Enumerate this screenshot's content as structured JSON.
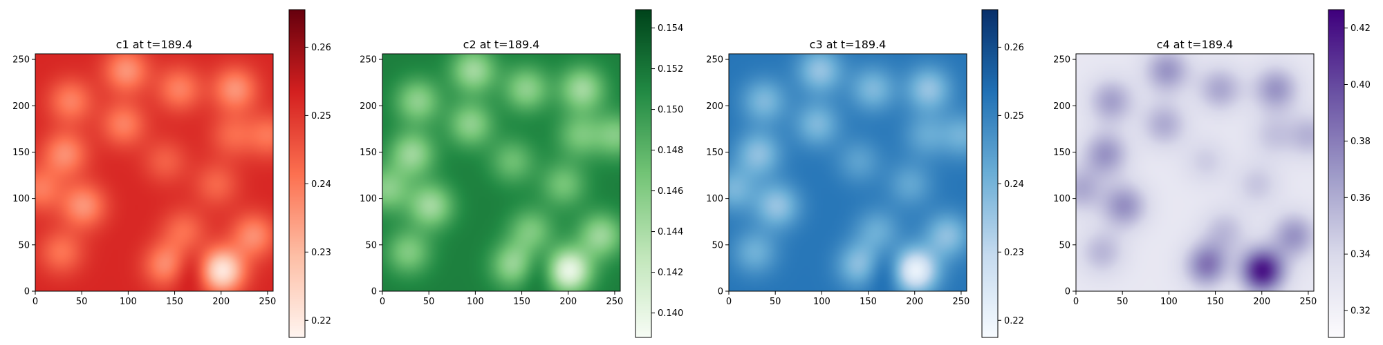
{
  "chart_data": [
    {
      "type": "heatmap",
      "title": "c1 at t=189.4",
      "xlim": [
        0,
        256
      ],
      "ylim": [
        0,
        256
      ],
      "xticks": [
        0,
        50,
        100,
        150,
        200,
        250
      ],
      "yticks": [
        0,
        50,
        100,
        150,
        200,
        250
      ],
      "colormap": "Reds",
      "colors": [
        "#fff5f0",
        "#fdbea5",
        "#fc7050",
        "#d42020",
        "#67000d"
      ],
      "clim": [
        0.2175,
        0.2655
      ],
      "colorbar_ticks": [
        0.22,
        0.23,
        0.24,
        0.25,
        0.26
      ],
      "colorbar_labels": [
        "0.22",
        "0.23",
        "0.24",
        "0.25",
        "0.26"
      ],
      "base_value": 0.2525,
      "blobs": [
        {
          "x": 200,
          "y": 22,
          "value": 0.2195
        },
        {
          "x": 142,
          "y": 28,
          "value": 0.2355
        },
        {
          "x": 168,
          "y": 22,
          "value": 0.262
        },
        {
          "x": 98,
          "y": 238,
          "value": 0.236
        },
        {
          "x": 215,
          "y": 218,
          "value": 0.236
        },
        {
          "x": 38,
          "y": 205,
          "value": 0.239
        },
        {
          "x": 155,
          "y": 218,
          "value": 0.239
        },
        {
          "x": 95,
          "y": 180,
          "value": 0.239
        },
        {
          "x": 32,
          "y": 148,
          "value": 0.237
        },
        {
          "x": 52,
          "y": 92,
          "value": 0.236
        },
        {
          "x": 235,
          "y": 60,
          "value": 0.237
        },
        {
          "x": 28,
          "y": 42,
          "value": 0.241
        },
        {
          "x": 195,
          "y": 115,
          "value": 0.243
        },
        {
          "x": 140,
          "y": 140,
          "value": 0.244
        },
        {
          "x": 5,
          "y": 110,
          "value": 0.24
        },
        {
          "x": 252,
          "y": 168,
          "value": 0.241
        },
        {
          "x": 212,
          "y": 168,
          "value": 0.243
        },
        {
          "x": 160,
          "y": 65,
          "value": 0.242
        }
      ]
    },
    {
      "type": "heatmap",
      "title": "c2 at t=189.4",
      "xlim": [
        0,
        256
      ],
      "ylim": [
        0,
        256
      ],
      "xticks": [
        0,
        50,
        100,
        150,
        200,
        250
      ],
      "yticks": [
        0,
        50,
        100,
        150,
        200,
        250
      ],
      "colormap": "Greens",
      "colors": [
        "#f7fcf5",
        "#c1e6ba",
        "#73c476",
        "#228a44",
        "#00441b"
      ],
      "clim": [
        0.1388,
        0.1549
      ],
      "colorbar_ticks": [
        0.14,
        0.142,
        0.144,
        0.146,
        0.148,
        0.15,
        0.152,
        0.154
      ],
      "colorbar_labels": [
        "0.140",
        "0.142",
        "0.144",
        "0.146",
        "0.148",
        "0.150",
        "0.152",
        "0.154"
      ],
      "base_value": 0.1515,
      "blobs": [
        {
          "x": 200,
          "y": 22,
          "value": 0.1395
        },
        {
          "x": 142,
          "y": 28,
          "value": 0.1445
        },
        {
          "x": 168,
          "y": 22,
          "value": 0.1545
        },
        {
          "x": 98,
          "y": 238,
          "value": 0.1445
        },
        {
          "x": 215,
          "y": 218,
          "value": 0.1445
        },
        {
          "x": 38,
          "y": 205,
          "value": 0.1455
        },
        {
          "x": 155,
          "y": 218,
          "value": 0.1455
        },
        {
          "x": 95,
          "y": 180,
          "value": 0.1455
        },
        {
          "x": 32,
          "y": 148,
          "value": 0.1448
        },
        {
          "x": 52,
          "y": 92,
          "value": 0.1445
        },
        {
          "x": 235,
          "y": 60,
          "value": 0.1448
        },
        {
          "x": 28,
          "y": 42,
          "value": 0.1462
        },
        {
          "x": 195,
          "y": 115,
          "value": 0.1468
        },
        {
          "x": 140,
          "y": 140,
          "value": 0.1472
        },
        {
          "x": 5,
          "y": 110,
          "value": 0.1458
        },
        {
          "x": 252,
          "y": 168,
          "value": 0.1462
        },
        {
          "x": 212,
          "y": 168,
          "value": 0.1468
        },
        {
          "x": 160,
          "y": 65,
          "value": 0.1465
        }
      ]
    },
    {
      "type": "heatmap",
      "title": "c3 at t=189.4",
      "xlim": [
        0,
        256
      ],
      "ylim": [
        0,
        256
      ],
      "xticks": [
        0,
        50,
        100,
        150,
        200,
        250
      ],
      "yticks": [
        0,
        50,
        100,
        150,
        200,
        250
      ],
      "colormap": "Blues",
      "colors": [
        "#f7fbff",
        "#c6dbef",
        "#6baed6",
        "#2171b5",
        "#08306b"
      ],
      "clim": [
        0.2175,
        0.2655
      ],
      "colorbar_ticks": [
        0.22,
        0.23,
        0.24,
        0.25,
        0.26
      ],
      "colorbar_labels": [
        "0.22",
        "0.23",
        "0.24",
        "0.25",
        "0.26"
      ],
      "base_value": 0.2525,
      "blobs": [
        {
          "x": 200,
          "y": 22,
          "value": 0.2195
        },
        {
          "x": 142,
          "y": 28,
          "value": 0.2355
        },
        {
          "x": 168,
          "y": 22,
          "value": 0.262
        },
        {
          "x": 98,
          "y": 238,
          "value": 0.236
        },
        {
          "x": 215,
          "y": 218,
          "value": 0.236
        },
        {
          "x": 38,
          "y": 205,
          "value": 0.239
        },
        {
          "x": 155,
          "y": 218,
          "value": 0.239
        },
        {
          "x": 95,
          "y": 180,
          "value": 0.239
        },
        {
          "x": 32,
          "y": 148,
          "value": 0.237
        },
        {
          "x": 52,
          "y": 92,
          "value": 0.236
        },
        {
          "x": 235,
          "y": 60,
          "value": 0.237
        },
        {
          "x": 28,
          "y": 42,
          "value": 0.241
        },
        {
          "x": 195,
          "y": 115,
          "value": 0.243
        },
        {
          "x": 140,
          "y": 140,
          "value": 0.244
        },
        {
          "x": 5,
          "y": 110,
          "value": 0.24
        },
        {
          "x": 252,
          "y": 168,
          "value": 0.241
        },
        {
          "x": 212,
          "y": 168,
          "value": 0.243
        },
        {
          "x": 160,
          "y": 65,
          "value": 0.242
        }
      ]
    },
    {
      "type": "heatmap",
      "title": "c4 at t=189.4",
      "xlim": [
        0,
        256
      ],
      "ylim": [
        0,
        256
      ],
      "xticks": [
        0,
        50,
        100,
        150,
        200,
        250
      ],
      "yticks": [
        0,
        50,
        100,
        150,
        200,
        250
      ],
      "colormap": "Purples",
      "colors": [
        "#fcfbfd",
        "#dadaeb",
        "#9e9ac8",
        "#6a51a3",
        "#3f007d"
      ],
      "clim": [
        0.3105,
        0.4265
      ],
      "colorbar_ticks": [
        0.32,
        0.34,
        0.36,
        0.38,
        0.4,
        0.42
      ],
      "colorbar_labels": [
        "0.32",
        "0.34",
        "0.36",
        "0.38",
        "0.40",
        "0.42"
      ],
      "base_value": 0.3275,
      "blobs": [
        {
          "x": 200,
          "y": 22,
          "value": 0.42
        },
        {
          "x": 142,
          "y": 28,
          "value": 0.385
        },
        {
          "x": 168,
          "y": 22,
          "value": 0.318
        },
        {
          "x": 98,
          "y": 238,
          "value": 0.37
        },
        {
          "x": 215,
          "y": 218,
          "value": 0.37
        },
        {
          "x": 38,
          "y": 205,
          "value": 0.365
        },
        {
          "x": 155,
          "y": 218,
          "value": 0.362
        },
        {
          "x": 95,
          "y": 180,
          "value": 0.36
        },
        {
          "x": 32,
          "y": 148,
          "value": 0.37
        },
        {
          "x": 52,
          "y": 92,
          "value": 0.372
        },
        {
          "x": 235,
          "y": 60,
          "value": 0.37
        },
        {
          "x": 28,
          "y": 42,
          "value": 0.355
        },
        {
          "x": 195,
          "y": 115,
          "value": 0.348
        },
        {
          "x": 140,
          "y": 140,
          "value": 0.345
        },
        {
          "x": 5,
          "y": 110,
          "value": 0.36
        },
        {
          "x": 252,
          "y": 168,
          "value": 0.356
        },
        {
          "x": 212,
          "y": 168,
          "value": 0.348
        },
        {
          "x": 160,
          "y": 65,
          "value": 0.352
        }
      ]
    }
  ]
}
